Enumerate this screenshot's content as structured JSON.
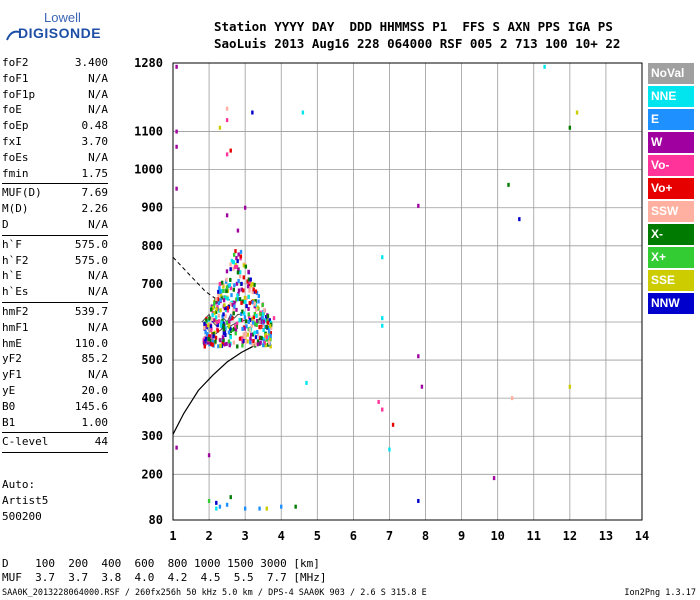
{
  "logo": {
    "line1": "Lowell",
    "line2": "DIGISONDE"
  },
  "header": {
    "line1": "Station YYYY DAY  DDD HHMMSS P1  FFS S AXN PPS IGA PS",
    "line2": "SaoLuis 2013 Aug16 228 064000 RSF 005 2 713 100 10+ 22"
  },
  "params": [
    {
      "name": "foF2",
      "value": "3.400"
    },
    {
      "name": "foF1",
      "value": "N/A"
    },
    {
      "name": "foF1p",
      "value": "N/A"
    },
    {
      "name": "foE",
      "value": "N/A"
    },
    {
      "name": "foEp",
      "value": "0.48"
    },
    {
      "name": "fxI",
      "value": "3.70"
    },
    {
      "name": "foEs",
      "value": "N/A"
    },
    {
      "name": "fmin",
      "value": "1.75",
      "sep": true
    },
    {
      "name": "MUF(D)",
      "value": "7.69"
    },
    {
      "name": "M(D)",
      "value": "2.26"
    },
    {
      "name": "D",
      "value": "N/A",
      "sep": true
    },
    {
      "name": "h`F",
      "value": "575.0"
    },
    {
      "name": "h`F2",
      "value": "575.0"
    },
    {
      "name": "h`E",
      "value": "N/A"
    },
    {
      "name": "h`Es",
      "value": "N/A",
      "sep": true
    },
    {
      "name": "hmF2",
      "value": "539.7"
    },
    {
      "name": "hmF1",
      "value": "N/A"
    },
    {
      "name": "hmE",
      "value": "110.0"
    },
    {
      "name": "yF2",
      "value": "85.2"
    },
    {
      "name": "yF1",
      "value": "N/A"
    },
    {
      "name": "yE",
      "value": "20.0"
    },
    {
      "name": "B0",
      "value": "145.6"
    },
    {
      "name": "B1",
      "value": "1.00",
      "sep": true
    },
    {
      "name": "C-level",
      "value": "44",
      "sep": true
    }
  ],
  "auto": {
    "line1": "Auto:",
    "line2": "Artist5",
    "line3": "500200"
  },
  "legend": [
    {
      "label": "NoVal",
      "color": "#a0a0a0"
    },
    {
      "label": "NNE",
      "color": "#00e5ee"
    },
    {
      "label": "E",
      "color": "#1e90ff"
    },
    {
      "label": "W",
      "color": "#a000a0"
    },
    {
      "label": "Vo-",
      "color": "#ff3399"
    },
    {
      "label": "Vo+",
      "color": "#e60000"
    },
    {
      "label": "SSW",
      "color": "#ffb0a0"
    },
    {
      "label": "X-",
      "color": "#007a00"
    },
    {
      "label": "X+",
      "color": "#33cc33"
    },
    {
      "label": "SSE",
      "color": "#cccc00"
    },
    {
      "label": "NNW",
      "color": "#0000cc"
    }
  ],
  "bottom": {
    "line1": "D    100  200  400  600  800 1000 1500 3000 [km]",
    "line2": "MUF  3.7  3.7  3.8  4.0  4.2  4.5  5.5  7.7 [MHz]"
  },
  "footer": {
    "left": "SAA0K_2013228064000.RSF / 260fx256h 50 kHz 5.0 km / DPS-4 SAA0K 903 / 2.6 S 315.8 E",
    "right": "Ion2Png 1.3.17"
  },
  "chart_data": {
    "type": "scatter",
    "xlim": [
      1,
      14
    ],
    "ylim": [
      80,
      1280
    ],
    "x_ticks": [
      1,
      2,
      3,
      4,
      5,
      6,
      7,
      8,
      9,
      10,
      11,
      12,
      13,
      14
    ],
    "y_ticks": [
      80,
      200,
      300,
      400,
      500,
      600,
      700,
      800,
      900,
      1000,
      1100,
      1280
    ],
    "grid": true,
    "legend_position": "right",
    "series": [
      {
        "name": "W",
        "points": [
          [
            1.1,
            1270
          ],
          [
            1.1,
            1100
          ],
          [
            1.1,
            1060
          ],
          [
            1.1,
            950
          ],
          [
            2.5,
            880
          ],
          [
            2.8,
            840
          ],
          [
            3.0,
            900
          ],
          [
            7.8,
            905
          ],
          [
            7.8,
            510
          ],
          [
            9.9,
            190
          ],
          [
            2.0,
            250
          ],
          [
            1.1,
            270
          ],
          [
            7.9,
            430
          ]
        ]
      },
      {
        "name": "NNW",
        "points": [
          [
            3.2,
            1150
          ],
          [
            10.6,
            870
          ],
          [
            7.8,
            130
          ],
          [
            2.2,
            125
          ],
          [
            2.4,
            620
          ],
          [
            2.9,
            700
          ],
          [
            3.3,
            560
          ]
        ]
      },
      {
        "name": "NNE",
        "points": [
          [
            4.6,
            1150
          ],
          [
            6.8,
            770
          ],
          [
            6.8,
            610
          ],
          [
            6.8,
            590
          ],
          [
            4.7,
            440
          ],
          [
            7.0,
            265
          ],
          [
            2.2,
            110
          ],
          [
            11.3,
            1270
          ],
          [
            3.5,
            620
          ],
          [
            2.6,
            560
          ]
        ]
      },
      {
        "name": "E",
        "points": [
          [
            2.3,
            115
          ],
          [
            2.5,
            120
          ],
          [
            3.0,
            110
          ],
          [
            3.4,
            110
          ],
          [
            4.0,
            115
          ],
          [
            2.7,
            640
          ],
          [
            3.1,
            600
          ]
        ]
      },
      {
        "name": "Vo-",
        "points": [
          [
            2.5,
            1130
          ],
          [
            2.5,
            1040
          ],
          [
            6.7,
            390
          ],
          [
            6.8,
            370
          ],
          [
            2.3,
            700
          ],
          [
            3.6,
            560
          ],
          [
            3.8,
            610
          ]
        ]
      },
      {
        "name": "Vo+",
        "points": [
          [
            2.6,
            1050
          ],
          [
            7.1,
            330
          ],
          [
            2.9,
            650
          ],
          [
            3.3,
            680
          ],
          [
            2.1,
            540
          ]
        ]
      },
      {
        "name": "SSW",
        "points": [
          [
            2.5,
            1160
          ],
          [
            10.4,
            400
          ],
          [
            2.2,
            660
          ],
          [
            3.0,
            560
          ]
        ]
      },
      {
        "name": "X-",
        "points": [
          [
            12.0,
            1110
          ],
          [
            10.3,
            960
          ],
          [
            4.4,
            115
          ],
          [
            2.6,
            140
          ],
          [
            2.4,
            590
          ],
          [
            2.8,
            730
          ]
        ]
      },
      {
        "name": "X+",
        "points": [
          [
            2.0,
            130
          ],
          [
            3.1,
            620
          ],
          [
            2.5,
            690
          ]
        ]
      },
      {
        "name": "SSE",
        "points": [
          [
            12.2,
            1150
          ],
          [
            12.0,
            430
          ],
          [
            2.3,
            1110
          ],
          [
            3.6,
            110
          ],
          [
            3.2,
            700
          ]
        ]
      },
      {
        "name": "NoVal",
        "points": [
          [
            3.4,
            600
          ],
          [
            2.0,
            580
          ]
        ]
      }
    ],
    "virtual_height_trace": [
      [
        1.0,
        305
      ],
      [
        1.3,
        360
      ],
      [
        1.7,
        420
      ],
      [
        2.1,
        460
      ],
      [
        2.5,
        495
      ],
      [
        2.9,
        520
      ],
      [
        3.2,
        535
      ],
      [
        3.35,
        545
      ]
    ],
    "dashed_trace": [
      [
        1.0,
        770
      ],
      [
        1.5,
        720
      ],
      [
        1.9,
        680
      ],
      [
        2.2,
        660
      ],
      [
        2.5,
        660
      ],
      [
        2.8,
        650
      ]
    ],
    "cluster_traces": [
      [
        [
          1.8,
          600
        ],
        [
          1.9,
          610
        ],
        [
          2.0,
          620
        ],
        [
          2.1,
          600
        ],
        [
          2.2,
          590
        ],
        [
          2.3,
          600
        ],
        [
          2.4,
          610
        ],
        [
          2.5,
          600
        ],
        [
          2.6,
          620
        ],
        [
          2.7,
          610
        ],
        [
          2.8,
          620
        ],
        [
          2.9,
          620
        ]
      ],
      [
        [
          2.0,
          560
        ],
        [
          2.2,
          570
        ],
        [
          2.4,
          585
        ],
        [
          2.6,
          590
        ],
        [
          2.8,
          600
        ],
        [
          3.0,
          605
        ]
      ]
    ]
  }
}
